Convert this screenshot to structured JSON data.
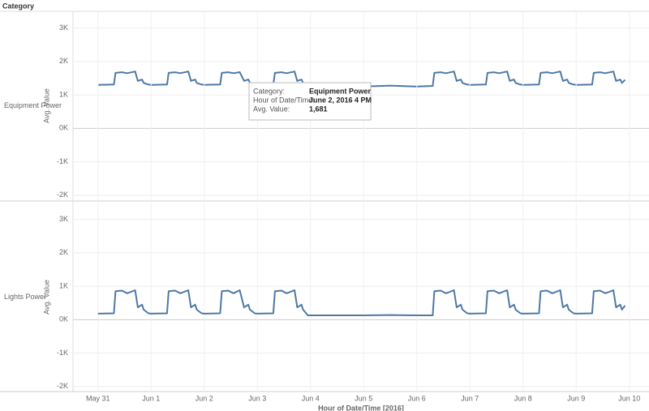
{
  "header": "Category",
  "tooltip": {
    "rows": [
      [
        "Category:",
        "Equipment Power"
      ],
      [
        "Hour of Date/Time:",
        "June 2, 2016 4 PM"
      ],
      [
        "Avg. Value:",
        "1,681"
      ]
    ]
  },
  "chart_data": [
    {
      "type": "line",
      "row_label": "Equipment Power",
      "ylabel": "Avg. Value",
      "color": "#4e79a7",
      "grid": true,
      "xlim": [
        -0.47,
        10.37
      ],
      "ylim": [
        -2150,
        3500
      ],
      "yticks": [
        {
          "value": 3000,
          "label": "3K"
        },
        {
          "value": 2000,
          "label": "2K"
        },
        {
          "value": 1000,
          "label": "1K"
        },
        {
          "value": 0,
          "label": "0K"
        },
        {
          "value": -1000,
          "label": "-1K"
        },
        {
          "value": -2000,
          "label": "-2K"
        }
      ],
      "x": [
        0,
        0.3,
        0.33,
        0.45,
        0.55,
        0.7,
        0.75,
        0.83,
        0.86,
        0.95,
        1,
        1.3,
        1.33,
        1.45,
        1.55,
        1.7,
        1.75,
        1.83,
        1.86,
        1.95,
        2,
        2.3,
        2.33,
        2.45,
        2.55,
        2.667,
        2.75,
        2.83,
        2.86,
        2.95,
        3,
        3.3,
        3.33,
        3.45,
        3.55,
        3.7,
        3.75,
        3.83,
        3.86,
        3.95,
        4.5,
        5,
        5.5,
        6,
        6.3,
        6.33,
        6.45,
        6.55,
        6.7,
        6.75,
        6.83,
        6.86,
        6.95,
        7,
        7.3,
        7.33,
        7.45,
        7.55,
        7.7,
        7.75,
        7.83,
        7.86,
        7.95,
        8,
        8.3,
        8.33,
        8.45,
        8.55,
        8.7,
        8.75,
        8.83,
        8.86,
        8.95,
        9,
        9.3,
        9.33,
        9.45,
        9.55,
        9.7,
        9.75,
        9.83,
        9.86,
        9.92
      ],
      "values": [
        1300,
        1310,
        1660,
        1680,
        1650,
        1700,
        1420,
        1460,
        1360,
        1310,
        1300,
        1310,
        1660,
        1680,
        1650,
        1700,
        1420,
        1460,
        1360,
        1310,
        1300,
        1310,
        1660,
        1680,
        1650,
        1681,
        1420,
        1460,
        1360,
        1310,
        1300,
        1310,
        1660,
        1680,
        1650,
        1700,
        1420,
        1460,
        1360,
        1250,
        1250,
        1250,
        1280,
        1250,
        1270,
        1660,
        1680,
        1650,
        1700,
        1420,
        1460,
        1360,
        1310,
        1300,
        1310,
        1660,
        1680,
        1650,
        1700,
        1420,
        1460,
        1360,
        1310,
        1300,
        1310,
        1660,
        1680,
        1650,
        1700,
        1420,
        1460,
        1360,
        1310,
        1300,
        1310,
        1660,
        1680,
        1650,
        1700,
        1420,
        1460,
        1360,
        1450
      ]
    },
    {
      "type": "line",
      "row_label": "Lights Power",
      "ylabel": "Avg. Value",
      "color": "#4e79a7",
      "grid": true,
      "xlabel": "Hour of Date/Time [2016]",
      "xlim": [
        -0.47,
        10.37
      ],
      "ylim": [
        -2150,
        3500
      ],
      "xticks": [
        {
          "value": 0,
          "label": "May 31"
        },
        {
          "value": 1,
          "label": "Jun 1"
        },
        {
          "value": 2,
          "label": "Jun 2"
        },
        {
          "value": 3,
          "label": "Jun 3"
        },
        {
          "value": 4,
          "label": "Jun 4"
        },
        {
          "value": 5,
          "label": "Jun 5"
        },
        {
          "value": 6,
          "label": "Jun 6"
        },
        {
          "value": 7,
          "label": "Jun 7"
        },
        {
          "value": 8,
          "label": "Jun 8"
        },
        {
          "value": 9,
          "label": "Jun 9"
        },
        {
          "value": 10,
          "label": "Jun 10"
        }
      ],
      "yticks": [
        {
          "value": 3000,
          "label": "3K"
        },
        {
          "value": 2000,
          "label": "2K"
        },
        {
          "value": 1000,
          "label": "1K"
        },
        {
          "value": 0,
          "label": "0K"
        },
        {
          "value": -1000,
          "label": "-1K"
        },
        {
          "value": -2000,
          "label": "-2K"
        }
      ],
      "x": [
        0,
        0.3,
        0.33,
        0.45,
        0.55,
        0.7,
        0.75,
        0.83,
        0.86,
        0.95,
        1,
        1.3,
        1.33,
        1.45,
        1.55,
        1.7,
        1.75,
        1.83,
        1.86,
        1.95,
        2,
        2.3,
        2.33,
        2.45,
        2.55,
        2.667,
        2.75,
        2.83,
        2.86,
        2.95,
        3,
        3.3,
        3.33,
        3.45,
        3.55,
        3.7,
        3.75,
        3.83,
        3.86,
        3.95,
        4.5,
        5,
        5.5,
        6,
        6.3,
        6.33,
        6.45,
        6.55,
        6.7,
        6.75,
        6.83,
        6.86,
        6.95,
        7,
        7.3,
        7.33,
        7.45,
        7.55,
        7.7,
        7.75,
        7.83,
        7.86,
        7.95,
        8,
        8.3,
        8.33,
        8.45,
        8.55,
        8.7,
        8.75,
        8.83,
        8.86,
        8.95,
        9,
        9.3,
        9.33,
        9.45,
        9.55,
        9.7,
        9.75,
        9.83,
        9.86,
        9.92
      ],
      "values": [
        180,
        190,
        850,
        870,
        790,
        880,
        370,
        450,
        300,
        190,
        180,
        190,
        850,
        870,
        790,
        880,
        370,
        450,
        300,
        190,
        180,
        190,
        850,
        870,
        790,
        880,
        370,
        450,
        300,
        190,
        180,
        190,
        850,
        870,
        790,
        880,
        370,
        450,
        300,
        130,
        130,
        130,
        140,
        130,
        130,
        850,
        870,
        790,
        880,
        370,
        450,
        300,
        190,
        180,
        190,
        850,
        870,
        790,
        880,
        370,
        450,
        300,
        190,
        180,
        190,
        850,
        870,
        790,
        880,
        370,
        450,
        300,
        190,
        180,
        190,
        850,
        870,
        790,
        880,
        370,
        450,
        300,
        420
      ]
    }
  ]
}
